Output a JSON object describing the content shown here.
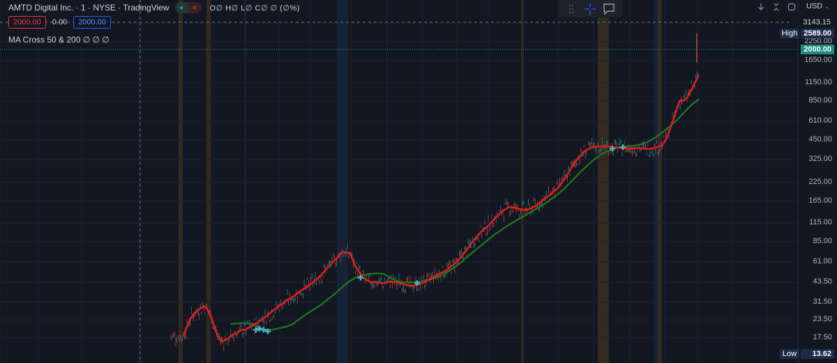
{
  "header": {
    "symbol_title": "AMTD Digital Inc. · 1 · NYSE · TradingView",
    "ohlc": "O∅ H∅ L∅ C∅ ∅ (∅%)",
    "pill_left": "●",
    "pill_right": "≈"
  },
  "order_bar": {
    "sell_price": "2000.00",
    "spread": "0.00",
    "buy_price": "2000.00"
  },
  "indicator": {
    "label": "MA Cross 50 & 200  ∅  ∅  ∅"
  },
  "toolbar_right": {
    "currency": "USD"
  },
  "price_axis": {
    "labels": [
      "2250.00",
      "1650.00",
      "1150.00",
      "850.00",
      "610.00",
      "450.00",
      "325.00",
      "225.00",
      "165.00",
      "115.00",
      "85.00",
      "61.00",
      "43.50",
      "31.50",
      "23.50",
      "17.50"
    ],
    "crosshair_price": "3143.15",
    "high_label": "High",
    "high_value": "2589.00",
    "last_price": "2000.00",
    "low_label": "Low",
    "low_value": "13.62"
  },
  "colors": {
    "background": "#131722",
    "fast_ma": "#e01e1e",
    "slow_ma": "#1f7a1f",
    "candle_up": "#26a69a",
    "candle_down": "#ef5350",
    "cross_marker": "#4fb3c9",
    "session_orange": "#6b4a22",
    "session_blue": "#1e3a5c"
  },
  "chart_data": {
    "type": "line",
    "y_scale": "log",
    "ylim": [
      13.62,
      3143.15
    ],
    "series": [
      {
        "name": "MA 50",
        "values": [
          18,
          21,
          24,
          26,
          27.5,
          28.5,
          29.5,
          27,
          22,
          18,
          16.5,
          17,
          18,
          18.7,
          19.2,
          20,
          20,
          21.5,
          23,
          25,
          27.5,
          30,
          32.5,
          35,
          38,
          41,
          45,
          50,
          57,
          64,
          72,
          70,
          56,
          47,
          44,
          43.5,
          43,
          44,
          43.5,
          42,
          41,
          42,
          44,
          47,
          50,
          53,
          58,
          65,
          75,
          88,
          100,
          110,
          125,
          140,
          150,
          147,
          143,
          145,
          155,
          170,
          185,
          205,
          240,
          290,
          340,
          380,
          400,
          405,
          405,
          400,
          395,
          390,
          392,
          395,
          390,
          388,
          392,
          400,
          410,
          430,
          470,
          530,
          620,
          740,
          860,
          860,
          900,
          1000,
          1300
        ]
      },
      {
        "name": "MA 200",
        "values": [
          22,
          22.2,
          22.3,
          22,
          21,
          20,
          20,
          20.5,
          21,
          22,
          24,
          26,
          28,
          30,
          33,
          36,
          40,
          44,
          47,
          49,
          50,
          50.5,
          50,
          47,
          44,
          43.5,
          43.5,
          44,
          45,
          46,
          48,
          51,
          55,
          60,
          66,
          73,
          80,
          88,
          96,
          104,
          112,
          120,
          128,
          137,
          147,
          157,
          170,
          185,
          205,
          230,
          260,
          290,
          320,
          350,
          372,
          390,
          400,
          405,
          410,
          420,
          440,
          470,
          510,
          560,
          620,
          700,
          790,
          880
        ]
      }
    ],
    "series_x": [
      [
        263,
        268,
        273,
        278,
        283,
        288,
        293,
        300,
        306,
        312,
        318,
        325,
        331,
        336,
        341,
        346,
        352,
        362,
        372,
        382,
        392,
        402,
        412,
        422,
        432,
        442,
        452,
        462,
        472,
        482,
        492,
        502,
        510,
        520,
        530,
        540,
        550,
        560,
        570,
        580,
        590,
        600,
        610,
        620,
        630,
        640,
        650,
        660,
        670,
        680,
        690,
        700,
        710,
        720,
        730,
        740,
        750,
        760,
        770,
        780,
        790,
        800,
        810,
        820,
        830,
        840,
        850,
        860,
        870,
        880,
        890,
        900,
        908,
        916,
        924,
        930,
        936,
        942,
        948,
        952,
        956,
        960,
        965,
        970,
        975,
        980,
        985,
        990,
        1002
      ],
      [
        330,
        340,
        350,
        360,
        370,
        380,
        390,
        400,
        410,
        420,
        430,
        440,
        450,
        460,
        470,
        480,
        490,
        500,
        510,
        520,
        530,
        540,
        550,
        560,
        570,
        580,
        590,
        600,
        610,
        620,
        630,
        640,
        650,
        660,
        670,
        680,
        690,
        700,
        710,
        720,
        730,
        740,
        750,
        760,
        770,
        780,
        790,
        800,
        810,
        820,
        830,
        840,
        850,
        860,
        870,
        880,
        890,
        900,
        910,
        920,
        930,
        940,
        950,
        960,
        970,
        980,
        990,
        1002
      ]
    ]
  }
}
